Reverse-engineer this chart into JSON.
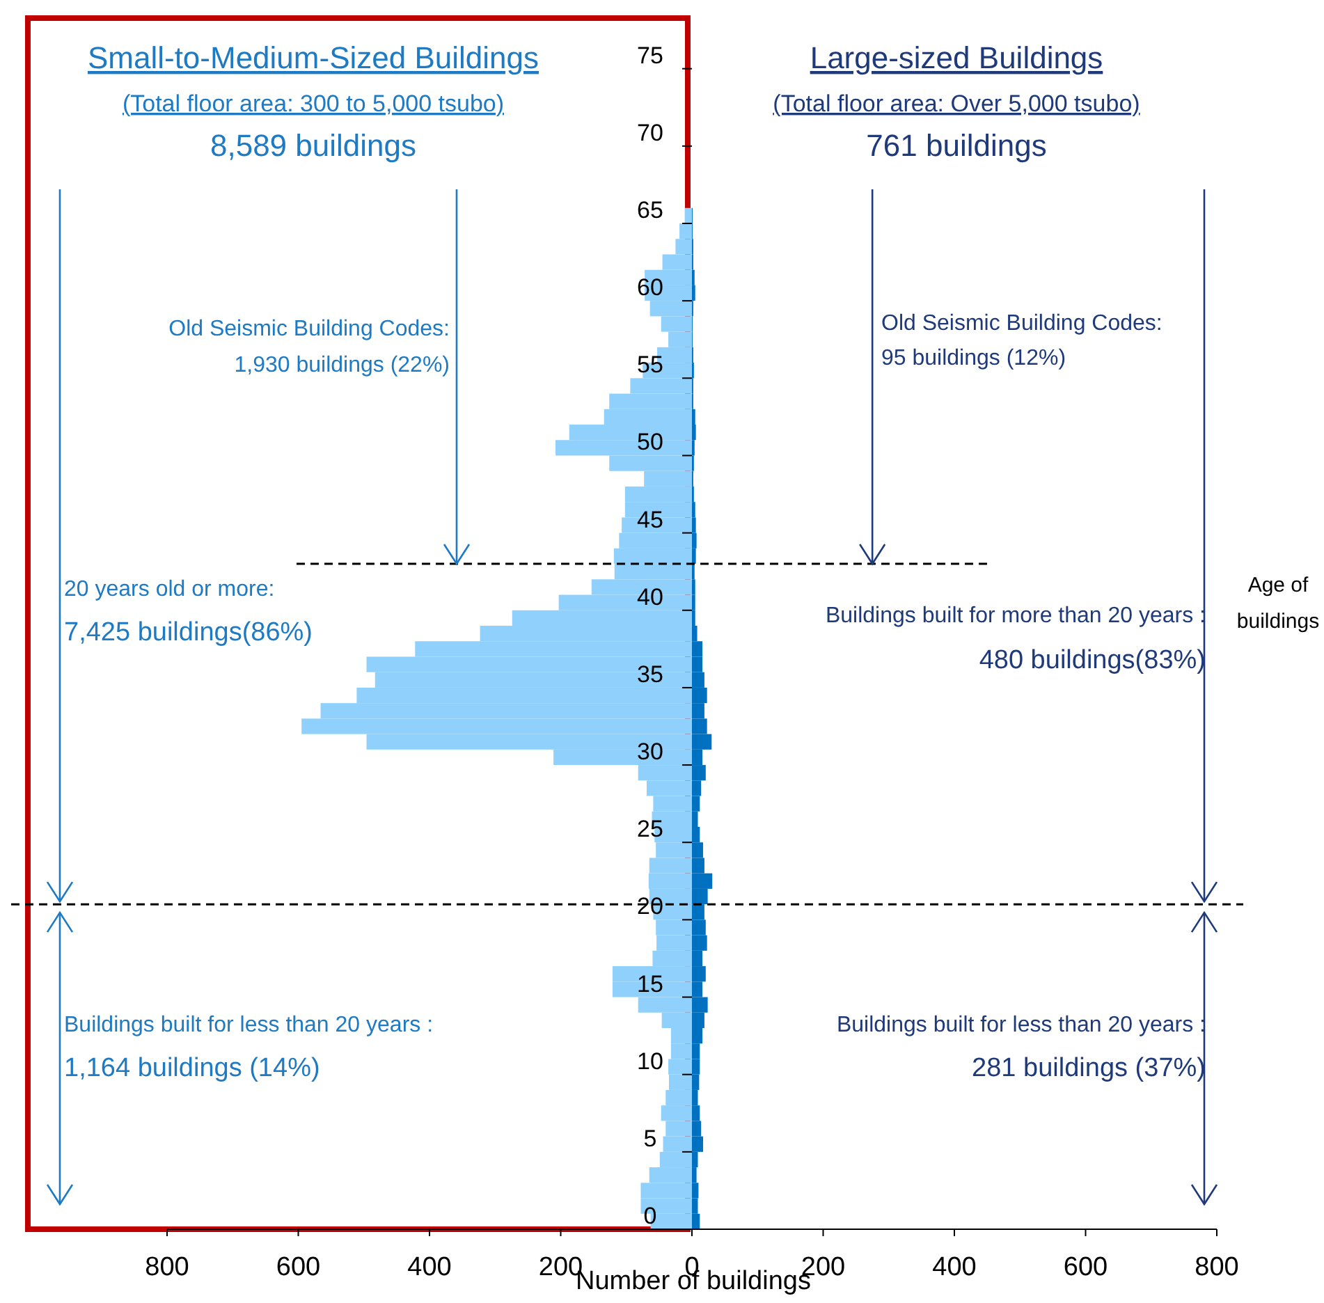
{
  "chart_data": {
    "type": "bar",
    "orientation": "horizontal",
    "stacked": true,
    "xlabel": "Number of buildings",
    "ylabel": "Age of buildings",
    "x": [
      0.5,
      1.5,
      2.5,
      3.5,
      4.5,
      5.5,
      6.5,
      7.5,
      8.5,
      9.5,
      10.5,
      11.5,
      12.5,
      13.5,
      14.5,
      15.5,
      16.5,
      17.5,
      18.5,
      19.5,
      20.5,
      21.5,
      22.5,
      23.5,
      24.5,
      25.5,
      26.5,
      27.5,
      28.5,
      29.5,
      30.5,
      31.5,
      32.5,
      33.5,
      34.5,
      35.5,
      36.5,
      37.5,
      38.5,
      39.5,
      40.5,
      41.5,
      42.5,
      43.5,
      44.5,
      45.5,
      46.5,
      47.5,
      48.5,
      49.5,
      50.5,
      51.5,
      52.5,
      53.5,
      54.5,
      55.5,
      56.5,
      57.5,
      58.5,
      59.5,
      60.5,
      61.5,
      62.5,
      63.5,
      64.5,
      65.5
    ],
    "series": [
      {
        "color": "#8fd1fc",
        "values": [
          -63,
          -78,
          -78,
          -65,
          -49,
          -44,
          -40,
          -47,
          -40,
          -35,
          -36,
          -32,
          -32,
          -46,
          -82,
          -121,
          -121,
          -60,
          -54,
          -55,
          -59,
          -65,
          -66,
          -65,
          -55,
          -57,
          -61,
          -59,
          -69,
          -82,
          -211,
          -496,
          -595,
          -566,
          -511,
          -483,
          -496,
          -422,
          -323,
          -274,
          -203,
          -153,
          -118,
          -119,
          -111,
          -107,
          -102,
          -102,
          -73,
          -126,
          -208,
          -187,
          -134,
          -126,
          -94,
          -75,
          -53,
          -36,
          -47,
          -64,
          -72,
          -72,
          -45,
          -25,
          -19,
          -11
        ]
      },
      {
        "color": "#0070c0",
        "values": [
          12,
          9,
          10,
          7,
          9,
          17,
          14,
          12,
          9,
          11,
          12,
          12,
          16,
          19,
          24,
          16,
          21,
          16,
          23,
          21,
          19,
          24,
          31,
          19,
          17,
          12,
          9,
          12,
          14,
          21,
          16,
          30,
          23,
          19,
          23,
          19,
          16,
          16,
          8,
          5,
          5,
          5,
          4,
          6,
          7,
          6,
          5,
          3,
          2,
          3,
          4,
          6,
          5,
          2,
          2,
          3,
          2,
          1,
          1,
          2,
          5,
          4,
          2,
          2,
          1,
          1
        ]
      }
    ],
    "xlim": [
      -800,
      800
    ],
    "xticks": [
      {
        "value": -800,
        "label": "800"
      },
      {
        "value": -600,
        "label": "600"
      },
      {
        "value": -400,
        "label": "400"
      },
      {
        "value": -200,
        "label": "200"
      },
      0,
      200,
      400,
      600,
      800
    ],
    "ylim": [
      0,
      78
    ],
    "yticks": [
      0,
      5,
      10,
      15,
      20,
      25,
      30,
      35,
      40,
      45,
      50,
      55,
      60,
      65,
      70,
      75
    ],
    "ref_lines": [
      {
        "axis": "y",
        "value": 21,
        "line_style": "dashed",
        "color": "#000000"
      },
      {
        "axis": "y",
        "value": 43,
        "line_style": "dashed",
        "color": "#000000"
      }
    ],
    "annotations": [
      "Small-to-Medium-Sized Buildings",
      "Large-sized Buildings",
      "(Total floor area: 300 to 5,000  tsubo)",
      "8,589 buildings",
      "(Total floor area: Over 5,000  tsubo)",
      {
        "text": "761 buildings",
        "x": 275,
        "y": 43
      },
      "Old Seismic Building Codes:",
      "1,930 buildings (22%)",
      "Old Seismic Building Codes:",
      "95 buildings (12%)",
      "20 years old or more:",
      "7,425 buildings(86%)",
      "Buildings built for more than 20 years :",
      "480 buildings(83%)",
      "Buildings built for less than 20 years :",
      "1,164 buildings (14%)",
      "Buildings built for less than 20 years :",
      "281 buildings (37%)"
    ]
  }
}
